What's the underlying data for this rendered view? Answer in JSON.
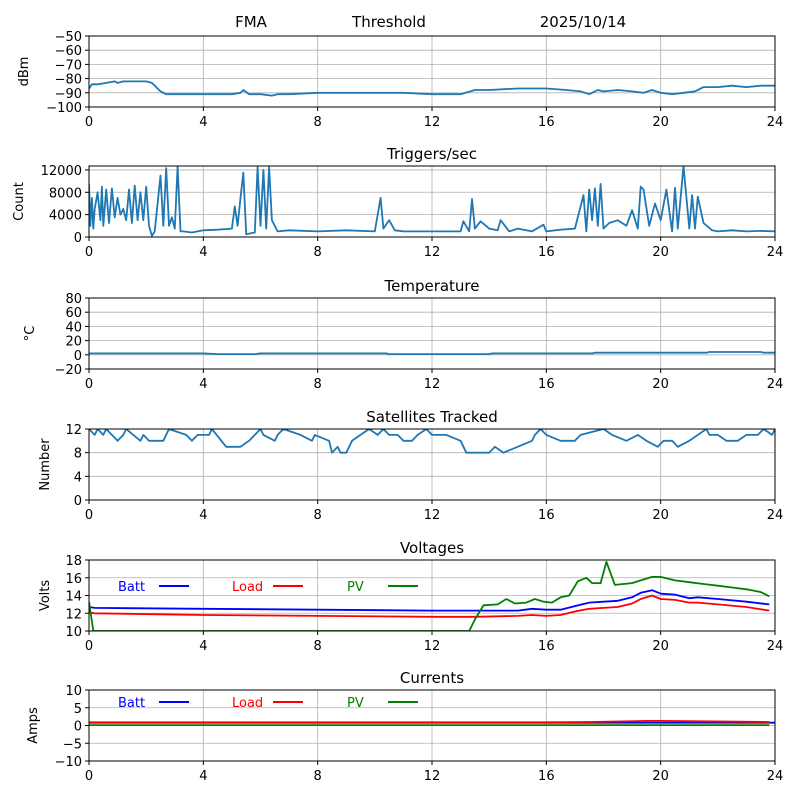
{
  "header": {
    "site": "FMA",
    "mode": "Threshold",
    "date": "2025/10/14"
  },
  "chart_data": [
    {
      "type": "line",
      "title": "",
      "ylabel": "dBm",
      "xlabel": "",
      "xlim": [
        0,
        24
      ],
      "ylim": [
        -100,
        -50
      ],
      "xticks": [
        0,
        4,
        8,
        12,
        16,
        20,
        24
      ],
      "yticks": [
        -100,
        -90,
        -80,
        -70,
        -60,
        -50
      ],
      "ytick_labels": [
        "−100",
        "−90",
        "−80",
        "−70",
        "−60",
        "−50"
      ],
      "grid": true,
      "series": [
        {
          "name": "Threshold",
          "color": "#1f77b4",
          "x": [
            0,
            0.1,
            0.3,
            0.6,
            0.9,
            1.0,
            1.2,
            1.5,
            2.0,
            2.2,
            2.5,
            2.7,
            3.0,
            3.5,
            4.0,
            4.5,
            5.0,
            5.3,
            5.4,
            5.6,
            6.0,
            6.4,
            6.6,
            7.0,
            8.0,
            9.0,
            10.0,
            11.0,
            12.0,
            13.0,
            13.5,
            14.0,
            15.0,
            16.0,
            16.7,
            17.2,
            17.5,
            17.8,
            18.0,
            18.5,
            19.0,
            19.4,
            19.7,
            20.0,
            20.4,
            20.8,
            21.2,
            21.5,
            22.0,
            22.5,
            23.0,
            23.5,
            24.0
          ],
          "y": [
            -87,
            -84,
            -84,
            -83,
            -82,
            -83,
            -82,
            -82,
            -82,
            -83,
            -89,
            -91,
            -91,
            -91,
            -91,
            -91,
            -91,
            -90,
            -88,
            -91,
            -91,
            -92,
            -91,
            -91,
            -90,
            -90,
            -90,
            -90,
            -91,
            -91,
            -88,
            -88,
            -87,
            -87,
            -88,
            -89,
            -91,
            -88,
            -89,
            -88,
            -89,
            -90,
            -88,
            -90,
            -91,
            -90,
            -89,
            -86,
            -86,
            -85,
            -86,
            -85,
            -85
          ]
        }
      ]
    },
    {
      "type": "line",
      "title": "Triggers/sec",
      "ylabel": "Count",
      "xlabel": "",
      "xlim": [
        0,
        24
      ],
      "ylim": [
        0,
        12700
      ],
      "xticks": [
        0,
        4,
        8,
        12,
        16,
        20,
        24
      ],
      "yticks": [
        0,
        4000,
        8000,
        12000
      ],
      "ytick_labels": [
        "0",
        "4000",
        "8000",
        "12000"
      ],
      "grid": true,
      "series": [
        {
          "name": "Triggers",
          "color": "#1f77b4",
          "x": [
            0,
            0.05,
            0.1,
            0.15,
            0.2,
            0.3,
            0.4,
            0.45,
            0.5,
            0.6,
            0.7,
            0.8,
            0.9,
            1.0,
            1.1,
            1.2,
            1.3,
            1.4,
            1.5,
            1.6,
            1.7,
            1.8,
            1.9,
            2.0,
            2.1,
            2.2,
            2.3,
            2.5,
            2.6,
            2.7,
            2.8,
            2.9,
            3.0,
            3.1,
            3.2,
            3.3,
            3.6,
            4.0,
            4.5,
            5.0,
            5.1,
            5.2,
            5.3,
            5.4,
            5.5,
            5.8,
            5.9,
            6.0,
            6.1,
            6.2,
            6.3,
            6.4,
            6.6,
            7.0,
            8.0,
            9.0,
            10.0,
            10.2,
            10.3,
            10.5,
            10.7,
            11.0,
            12.0,
            13.0,
            13.1,
            13.3,
            13.4,
            13.5,
            13.7,
            14.0,
            14.3,
            14.4,
            14.7,
            15.0,
            15.5,
            15.9,
            16.0,
            16.5,
            17.0,
            17.3,
            17.4,
            17.5,
            17.6,
            17.7,
            17.8,
            17.9,
            18.0,
            18.2,
            18.5,
            18.8,
            19.0,
            19.2,
            19.3,
            19.4,
            19.6,
            19.8,
            20.0,
            20.2,
            20.4,
            20.5,
            20.6,
            20.8,
            21.0,
            21.1,
            21.2,
            21.3,
            21.5,
            21.8,
            22.0,
            22.5,
            23.0,
            23.5,
            24.0
          ],
          "y": [
            9500,
            2000,
            7000,
            1500,
            5000,
            8000,
            3000,
            9000,
            2000,
            8500,
            2500,
            8700,
            3500,
            7000,
            4000,
            5000,
            3000,
            8500,
            2500,
            9200,
            3000,
            8000,
            3000,
            9000,
            2000,
            200,
            1000,
            11000,
            2000,
            12300,
            2000,
            3500,
            1500,
            12700,
            1000,
            1000,
            800,
            1200,
            1300,
            1500,
            5500,
            2000,
            7000,
            11500,
            500,
            800,
            12500,
            2000,
            12000,
            1500,
            12500,
            3000,
            1000,
            1200,
            1000,
            1200,
            1000,
            7000,
            1500,
            3000,
            1200,
            1000,
            1000,
            1000,
            2800,
            1000,
            6800,
            1500,
            2800,
            1500,
            1200,
            3000,
            1000,
            1500,
            1000,
            2200,
            1000,
            1300,
            1500,
            7500,
            1000,
            8500,
            3000,
            8700,
            2000,
            9500,
            1500,
            2500,
            3000,
            2000,
            4800,
            1500,
            9000,
            8500,
            2000,
            6000,
            3000,
            8500,
            1000,
            8800,
            1500,
            12700,
            1500,
            7500,
            1500,
            7200,
            2500,
            1200,
            1000,
            1200,
            1000,
            1100,
            1000
          ]
        }
      ]
    },
    {
      "type": "line",
      "title": "Temperature",
      "ylabel": "°C",
      "xlabel": "",
      "xlim": [
        0,
        24
      ],
      "ylim": [
        -20,
        80
      ],
      "xticks": [
        0,
        4,
        8,
        12,
        16,
        20,
        24
      ],
      "yticks": [
        -20,
        0,
        20,
        40,
        60,
        80
      ],
      "ytick_labels": [
        "−20",
        "0",
        "20",
        "40",
        "60",
        "80"
      ],
      "grid": true,
      "series": [
        {
          "name": "Temperature",
          "color": "#1f77b4",
          "x": [
            0,
            4.0,
            4.5,
            5.8,
            6.0,
            10.4,
            10.5,
            14.0,
            14.1,
            17.6,
            17.7,
            21.6,
            21.7,
            23.5,
            23.6,
            24.0
          ],
          "y": [
            2,
            2,
            1,
            1,
            2,
            2,
            1,
            1,
            2,
            2,
            3,
            3,
            4,
            4,
            3,
            3
          ]
        }
      ]
    },
    {
      "type": "line",
      "title": "Satellites Tracked",
      "ylabel": "Number",
      "xlabel": "",
      "xlim": [
        0,
        24
      ],
      "ylim": [
        0,
        12
      ],
      "xticks": [
        0,
        4,
        8,
        12,
        16,
        20,
        24
      ],
      "yticks": [
        0,
        4,
        8,
        12
      ],
      "ytick_labels": [
        "0",
        "4",
        "8",
        "12"
      ],
      "grid": true,
      "series": [
        {
          "name": "Satellites",
          "color": "#1f77b4",
          "x": [
            0,
            0.2,
            0.3,
            0.5,
            0.6,
            0.8,
            1.0,
            1.2,
            1.3,
            1.8,
            1.9,
            2.1,
            2.6,
            2.8,
            3.4,
            3.6,
            3.8,
            4.2,
            4.3,
            4.8,
            5.3,
            5.6,
            5.8,
            6.0,
            6.1,
            6.5,
            6.6,
            6.8,
            7.4,
            7.8,
            7.9,
            8.4,
            8.5,
            8.7,
            8.8,
            9.0,
            9.2,
            9.5,
            9.8,
            10.1,
            10.3,
            10.5,
            10.8,
            11.0,
            11.3,
            11.5,
            11.8,
            12.0,
            12.5,
            13.0,
            13.2,
            14.0,
            14.2,
            14.5,
            15.5,
            15.6,
            15.8,
            16.0,
            16.5,
            17.0,
            17.2,
            18.0,
            18.3,
            18.8,
            19.2,
            19.5,
            19.9,
            20.1,
            20.4,
            20.6,
            21.0,
            21.6,
            21.7,
            22.0,
            22.3,
            22.7,
            23.0,
            23.4,
            23.6,
            23.9,
            24.0
          ],
          "y": [
            12,
            11,
            12,
            11,
            12,
            11,
            10,
            11,
            12,
            10,
            11,
            10,
            10,
            12,
            11,
            10,
            11,
            11,
            12,
            9,
            9,
            10,
            11,
            12,
            11,
            10,
            11,
            12,
            11,
            10,
            11,
            10,
            8,
            9,
            8,
            8,
            10,
            11,
            12,
            11,
            12,
            11,
            11,
            10,
            10,
            11,
            12,
            11,
            11,
            10,
            8,
            8,
            9,
            8,
            10,
            11,
            12,
            11,
            10,
            10,
            11,
            12,
            11,
            10,
            11,
            10,
            9,
            10,
            10,
            9,
            10,
            12,
            11,
            11,
            10,
            10,
            11,
            11,
            12,
            11,
            12
          ]
        }
      ]
    },
    {
      "type": "line",
      "title": "Voltages",
      "ylabel": "Volts",
      "xlabel": "",
      "xlim": [
        0,
        24
      ],
      "ylim": [
        10,
        18
      ],
      "xticks": [
        0,
        4,
        8,
        12,
        16,
        20,
        24
      ],
      "yticks": [
        10,
        12,
        14,
        16,
        18
      ],
      "ytick_labels": [
        "10",
        "12",
        "14",
        "16",
        "18"
      ],
      "grid": true,
      "legend": {
        "placement": "top-left",
        "entries": [
          "Batt",
          "Load",
          "PV"
        ]
      },
      "series": [
        {
          "name": "Batt",
          "color": "#0000ff",
          "x": [
            0,
            0.2,
            4,
            8,
            12,
            13.5,
            15,
            15.5,
            16,
            16.5,
            17,
            17.5,
            18,
            18.5,
            19,
            19.3,
            19.7,
            20,
            20.5,
            21,
            21.3,
            22,
            23,
            23.8
          ],
          "y": [
            12.7,
            12.6,
            12.5,
            12.4,
            12.3,
            12.3,
            12.3,
            12.5,
            12.4,
            12.4,
            12.8,
            13.2,
            13.3,
            13.4,
            13.8,
            14.3,
            14.6,
            14.2,
            14.1,
            13.7,
            13.8,
            13.6,
            13.3,
            13.0
          ]
        },
        {
          "name": "Load",
          "color": "#ff0000",
          "x": [
            0,
            0.2,
            4,
            8,
            12,
            13.5,
            15,
            15.5,
            16,
            16.5,
            17,
            17.5,
            18,
            18.5,
            19,
            19.3,
            19.7,
            20,
            20.5,
            21,
            21.3,
            22,
            23,
            23.8
          ],
          "y": [
            12.1,
            12.0,
            11.8,
            11.7,
            11.6,
            11.6,
            11.7,
            11.8,
            11.7,
            11.8,
            12.2,
            12.5,
            12.6,
            12.7,
            13.1,
            13.6,
            14.0,
            13.6,
            13.5,
            13.2,
            13.2,
            13.0,
            12.7,
            12.3
          ]
        },
        {
          "name": "PV",
          "color": "#008000",
          "x": [
            0,
            0.15,
            13.3,
            13.5,
            13.8,
            14.3,
            14.6,
            14.9,
            15.3,
            15.6,
            15.9,
            16.2,
            16.5,
            16.8,
            17.1,
            17.4,
            17.6,
            17.9,
            18.1,
            18.4,
            18.7,
            19.0,
            19.4,
            19.7,
            20.0,
            20.5,
            21.0,
            21.5,
            22.0,
            22.5,
            23.0,
            23.5,
            23.8
          ],
          "y": [
            13.3,
            10.0,
            10.0,
            11.3,
            12.9,
            13.0,
            13.6,
            13.1,
            13.2,
            13.6,
            13.3,
            13.2,
            13.8,
            14.0,
            15.6,
            16.0,
            15.4,
            15.4,
            17.8,
            15.2,
            15.3,
            15.4,
            15.8,
            16.1,
            16.1,
            15.7,
            15.5,
            15.3,
            15.1,
            14.9,
            14.7,
            14.4,
            13.9
          ]
        }
      ]
    },
    {
      "type": "line",
      "title": "Currents",
      "ylabel": "Amps",
      "xlabel": "",
      "xlim": [
        0,
        24
      ],
      "ylim": [
        -10,
        10
      ],
      "xticks": [
        0,
        4,
        8,
        12,
        16,
        20,
        24
      ],
      "yticks": [
        -10,
        -5,
        0,
        5,
        10
      ],
      "ytick_labels": [
        "−10",
        "−5",
        "0",
        "5",
        "10"
      ],
      "grid": true,
      "legend": {
        "placement": "top-left",
        "entries": [
          "Batt",
          "Load",
          "PV"
        ]
      },
      "series": [
        {
          "name": "Batt",
          "color": "#0000ff",
          "x": [
            0,
            24
          ],
          "y": [
            0.8,
            0.8
          ]
        },
        {
          "name": "Load",
          "color": "#ff0000",
          "x": [
            0,
            16,
            17.5,
            19.5,
            20,
            21,
            23.8
          ],
          "y": [
            0.9,
            0.9,
            1.0,
            1.3,
            1.3,
            1.2,
            1.0
          ]
        },
        {
          "name": "PV",
          "color": "#008000",
          "x": [
            0,
            23.8
          ],
          "y": [
            0.1,
            0.1
          ]
        }
      ]
    }
  ]
}
